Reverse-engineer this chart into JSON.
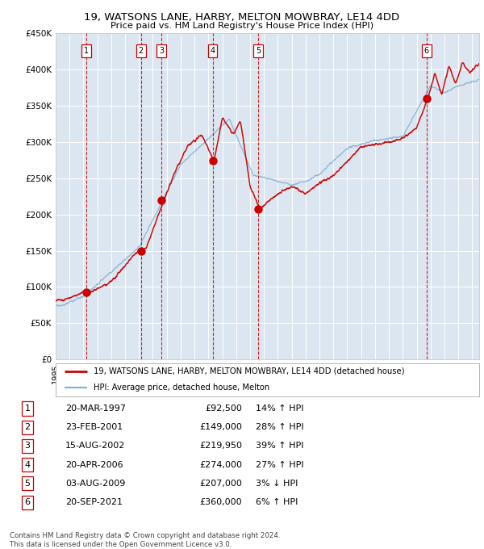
{
  "title1": "19, WATSONS LANE, HARBY, MELTON MOWBRAY, LE14 4DD",
  "title2": "Price paid vs. HM Land Registry's House Price Index (HPI)",
  "bg_color": "#dce6f1",
  "red_line_color": "#cc0000",
  "blue_line_color": "#7bafd4",
  "sale_marker_color": "#cc0000",
  "dashed_line_color": "#cc0000",
  "grid_color": "#ffffff",
  "sales": [
    {
      "num": 1,
      "date": "20-MAR-1997",
      "price": 92500,
      "hpi_pct": "14% ↑ HPI",
      "year": 1997.22
    },
    {
      "num": 2,
      "date": "23-FEB-2001",
      "price": 149000,
      "hpi_pct": "28% ↑ HPI",
      "year": 2001.14
    },
    {
      "num": 3,
      "date": "15-AUG-2002",
      "price": 219950,
      "hpi_pct": "39% ↑ HPI",
      "year": 2002.62
    },
    {
      "num": 4,
      "date": "20-APR-2006",
      "price": 274000,
      "hpi_pct": "27% ↑ HPI",
      "year": 2006.3
    },
    {
      "num": 5,
      "date": "03-AUG-2009",
      "price": 207000,
      "hpi_pct": "3% ↓ HPI",
      "year": 2009.59
    },
    {
      "num": 6,
      "date": "20-SEP-2021",
      "price": 360000,
      "hpi_pct": "6% ↑ HPI",
      "year": 2021.72
    }
  ],
  "xmin": 1995.0,
  "xmax": 2025.5,
  "ymin": 0,
  "ymax": 450000,
  "yticks": [
    0,
    50000,
    100000,
    150000,
    200000,
    250000,
    300000,
    350000,
    400000,
    450000
  ],
  "ytick_labels": [
    "£0",
    "£50K",
    "£100K",
    "£150K",
    "£200K",
    "£250K",
    "£300K",
    "£350K",
    "£400K",
    "£450K"
  ],
  "footer": "Contains HM Land Registry data © Crown copyright and database right 2024.\nThis data is licensed under the Open Government Licence v3.0.",
  "legend_label_red": "19, WATSONS LANE, HARBY, MELTON MOWBRAY, LE14 4DD (detached house)",
  "legend_label_blue": "HPI: Average price, detached house, Melton"
}
